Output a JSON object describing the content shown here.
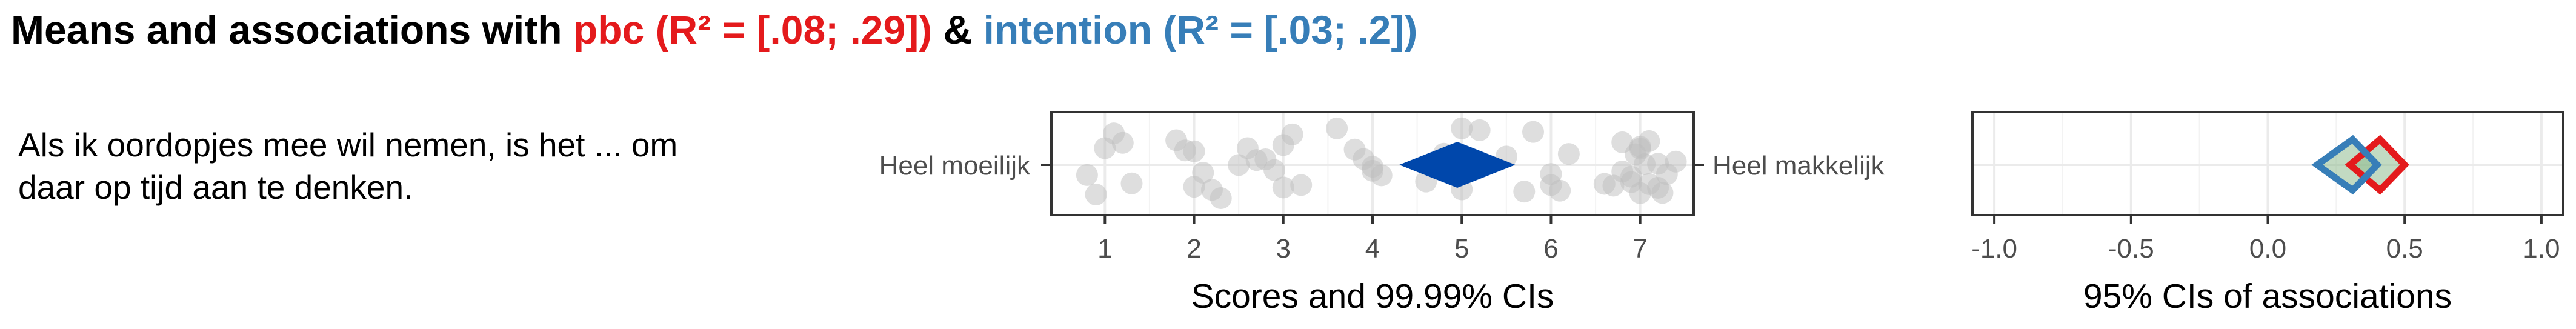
{
  "title": {
    "prefix": "Means and associations with ",
    "pbc_label": "pbc (R² = [.08; .29])",
    "joiner": " & ",
    "intention_label": "intention (R² = [.03; .2])"
  },
  "colors": {
    "pbc": "#e41a1c",
    "intention": "#377eb8",
    "mean_diamond": "#0047ab",
    "overlap": "#8fbc8f",
    "points": "#bdbdbd"
  },
  "item": {
    "lines": [
      "Als ik oordopjes mee wil nemen, is het ... om",
      "daar op tijd aan te denken."
    ],
    "anchor_low": "Heel moeilijk",
    "anchor_high": "Heel makkelijk"
  },
  "chart_data": [
    {
      "type": "scatter",
      "xlabel": "Scores and 99.99% CIs",
      "xlim": [
        0.4,
        7.6
      ],
      "xticks": [
        1,
        2,
        3,
        4,
        5,
        6,
        7
      ],
      "mean": 4.95,
      "ci": [
        4.3,
        5.6
      ],
      "points": [
        0.8,
        0.9,
        1.0,
        1.1,
        1.2,
        1.3,
        1.8,
        1.9,
        2.0,
        2.0,
        2.1,
        2.2,
        2.3,
        2.5,
        2.6,
        2.7,
        2.8,
        2.9,
        3.0,
        3.0,
        3.1,
        3.2,
        3.6,
        3.8,
        3.9,
        4.0,
        4.0,
        4.1,
        4.6,
        4.8,
        5.0,
        5.0,
        5.2,
        5.5,
        5.7,
        5.8,
        6.0,
        6.0,
        6.1,
        6.2,
        6.6,
        6.7,
        6.8,
        6.9,
        7.0,
        7.0,
        7.1,
        7.2,
        7.3,
        7.4,
        6.9,
        7.0,
        7.1,
        7.2,
        6.8,
        6.95,
        7.05,
        7.25
      ]
    },
    {
      "type": "scatter",
      "xlabel": "95% CIs of associations",
      "xlim": [
        -1.08,
        1.08
      ],
      "xticks": [
        -1.0,
        -0.5,
        0.0,
        0.5,
        1.0
      ],
      "tick_labels": [
        "-1.0",
        "-0.5",
        "0.0",
        "0.5",
        "1.0"
      ],
      "series": [
        {
          "name": "pbc",
          "ci": [
            0.3,
            0.5
          ],
          "estimate": 0.41
        },
        {
          "name": "intention",
          "ci": [
            0.18,
            0.4
          ],
          "estimate": 0.31
        }
      ]
    }
  ]
}
